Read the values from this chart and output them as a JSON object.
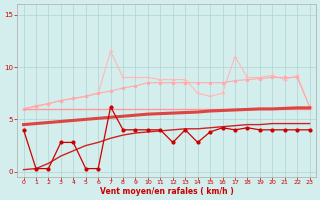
{
  "x": [
    0,
    1,
    2,
    3,
    4,
    5,
    6,
    7,
    8,
    9,
    10,
    11,
    12,
    13,
    14,
    15,
    16,
    17,
    18,
    19,
    20,
    21,
    22,
    23
  ],
  "line_spiky_y": [
    6.0,
    6.2,
    6.5,
    6.8,
    7.0,
    7.2,
    7.5,
    11.5,
    9.0,
    9.0,
    9.0,
    8.8,
    8.8,
    8.8,
    7.5,
    7.2,
    7.5,
    11.0,
    9.0,
    9.0,
    9.2,
    8.8,
    9.2,
    6.2
  ],
  "line_rising_pink_y": [
    6.0,
    6.3,
    6.5,
    6.8,
    7.0,
    7.2,
    7.5,
    7.7,
    8.0,
    8.2,
    8.5,
    8.5,
    8.5,
    8.5,
    8.5,
    8.5,
    8.5,
    8.7,
    8.8,
    8.9,
    9.0,
    9.0,
    9.0,
    6.2
  ],
  "line_flat6_y": [
    6.0,
    6.0,
    6.0,
    6.0,
    6.0,
    6.0,
    6.0,
    6.0,
    6.0,
    6.0,
    6.0,
    6.0,
    6.0,
    6.0,
    6.0,
    6.0,
    6.0,
    6.0,
    6.0,
    6.0,
    6.0,
    6.0,
    6.0,
    6.0
  ],
  "line_regress_y": [
    4.5,
    4.6,
    4.7,
    4.8,
    4.9,
    5.0,
    5.1,
    5.2,
    5.3,
    5.4,
    5.5,
    5.55,
    5.6,
    5.65,
    5.7,
    5.8,
    5.85,
    5.9,
    5.95,
    6.0,
    6.0,
    6.05,
    6.1,
    6.1
  ],
  "line_jagged_y": [
    4.0,
    0.3,
    0.3,
    2.8,
    2.8,
    0.3,
    0.3,
    6.2,
    4.0,
    4.0,
    4.0,
    4.0,
    2.8,
    4.0,
    2.8,
    3.8,
    4.2,
    4.0,
    4.2,
    4.0,
    4.0,
    4.0,
    4.0,
    4.0
  ],
  "line_curve_y": [
    0.2,
    0.3,
    0.8,
    1.5,
    2.0,
    2.5,
    2.8,
    3.2,
    3.5,
    3.7,
    3.8,
    3.9,
    4.0,
    4.1,
    4.1,
    4.2,
    4.3,
    4.4,
    4.5,
    4.5,
    4.6,
    4.6,
    4.6,
    4.6
  ],
  "bg_color": "#d4eeed",
  "grid_color": "#aed4d2",
  "color_light_pink": "#ffb8b8",
  "color_med_pink": "#ffaaaa",
  "color_flat": "#ff9999",
  "color_regress": "#dd4444",
  "color_jagged": "#cc0000",
  "color_curve": "#cc2222",
  "xlabel": "Vent moyen/en rafales ( km/h )",
  "ylim": [
    -0.5,
    16
  ],
  "xlim": [
    -0.5,
    23.5
  ],
  "yticks": [
    0,
    5,
    10,
    15
  ],
  "xticks": [
    0,
    1,
    2,
    3,
    4,
    5,
    6,
    7,
    8,
    9,
    10,
    11,
    12,
    13,
    14,
    15,
    16,
    17,
    18,
    19,
    20,
    21,
    22,
    23
  ]
}
